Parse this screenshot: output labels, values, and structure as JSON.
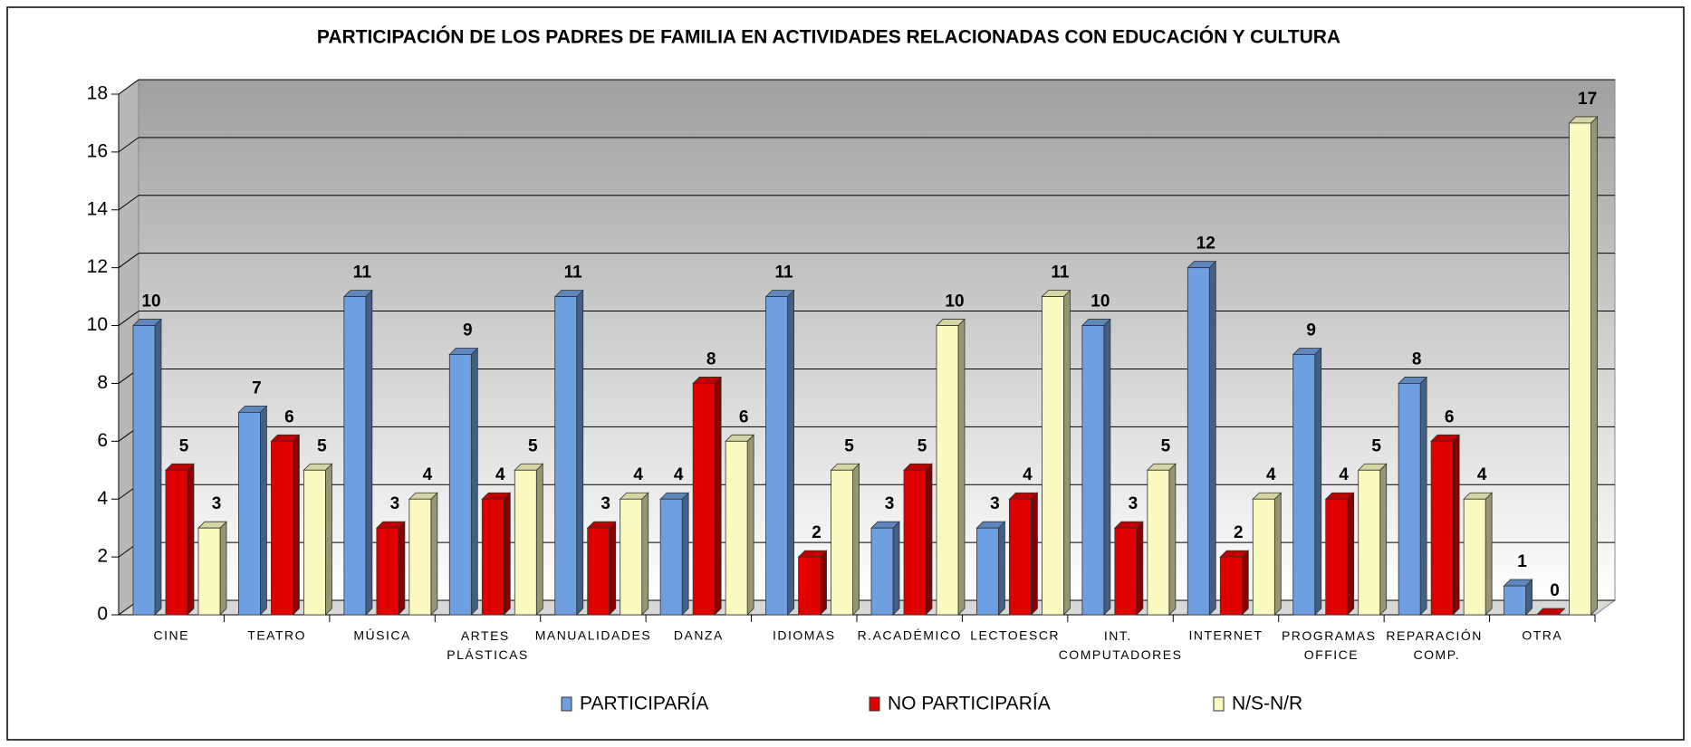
{
  "chart_data": {
    "type": "bar3d",
    "title": "PARTICIPACIÓN DE LOS PADRES DE FAMILIA EN ACTIVIDADES RELACIONADAS CON EDUCACIÓN Y CULTURA",
    "categories": [
      "CINE",
      "TEATRO",
      "MÚSICA",
      "ARTES PLÁSTICAS",
      "MANUALIDADES",
      "DANZA",
      "IDIOMAS",
      "R.ACADÉMICO",
      "LECTOESCR",
      "INT. COMPUTADORES",
      "INTERNET",
      "PROGRAMAS OFFICE",
      "REPARACIÓN COMP.",
      "OTRA"
    ],
    "series": [
      {
        "name": "PARTICIPARÍA",
        "color": "#6e9fe0",
        "values": [
          10,
          7,
          11,
          9,
          11,
          4,
          11,
          3,
          3,
          10,
          12,
          9,
          8,
          1
        ]
      },
      {
        "name": "NO PARTICIPARÍA",
        "color": "#e00000",
        "values": [
          5,
          6,
          3,
          4,
          3,
          8,
          2,
          5,
          4,
          3,
          2,
          4,
          6,
          0
        ]
      },
      {
        "name": "N/S-N/R",
        "color": "#fafac0",
        "values": [
          3,
          5,
          4,
          5,
          4,
          6,
          5,
          10,
          11,
          5,
          4,
          5,
          4,
          17
        ]
      }
    ],
    "ylim": [
      0,
      18
    ],
    "yticks": [
      0,
      2,
      4,
      6,
      8,
      10,
      12,
      14,
      16,
      18
    ],
    "grid": true,
    "legend": "bottom"
  }
}
